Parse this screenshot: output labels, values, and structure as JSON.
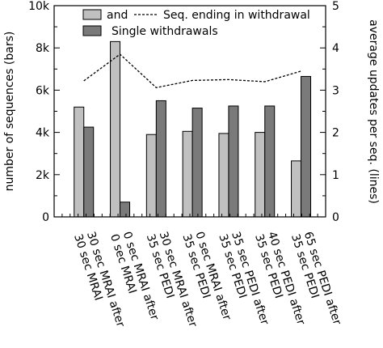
{
  "chart_data": {
    "type": "bar",
    "categories": [
      [
        "30 sec MRAI after",
        "30 sec MRAI"
      ],
      [
        "0 sec MRAI after",
        "0 sec MRAI"
      ],
      [
        "30 sec MRAI after",
        "35 sec PEDI"
      ],
      [
        "0 sec MRAI after",
        "35 sec PEDI"
      ],
      [
        "35 sec PEDI after",
        "35 sec PEDI"
      ],
      [
        "40 sec PEDI after",
        "35 sec PEDI"
      ],
      [
        "65 sec PEDI after",
        "35 sec PEDI"
      ]
    ],
    "series": [
      {
        "name": "and",
        "axis": "left",
        "color": "#c0c0c0",
        "values": [
          5200,
          8300,
          3900,
          4050,
          3950,
          4000,
          2650
        ]
      },
      {
        "name": "Single withdrawals",
        "axis": "left",
        "color": "#7a7a7a",
        "values": [
          4250,
          700,
          5500,
          5150,
          5250,
          5250,
          6650
        ]
      },
      {
        "name": "Seq. ending in withdrawal",
        "axis": "right",
        "type": "line",
        "style": "dashed",
        "values": [
          3.22,
          3.85,
          3.06,
          3.23,
          3.25,
          3.2,
          3.45
        ]
      }
    ],
    "yleft": {
      "label": "number of sequences (bars)",
      "range": [
        0,
        10000
      ],
      "ticks": [
        0,
        2000,
        4000,
        6000,
        8000,
        10000
      ],
      "tick_labels": [
        "0",
        "2k",
        "4k",
        "6k",
        "8k",
        "10k"
      ]
    },
    "yright": {
      "label": "average updates per seq. (lines)",
      "range": [
        0,
        5
      ],
      "ticks": [
        0,
        1,
        2,
        3,
        4,
        5
      ],
      "tick_labels": [
        "0",
        "1",
        "2",
        "3",
        "4",
        "5"
      ]
    },
    "legend_position": "top",
    "grid": false
  }
}
